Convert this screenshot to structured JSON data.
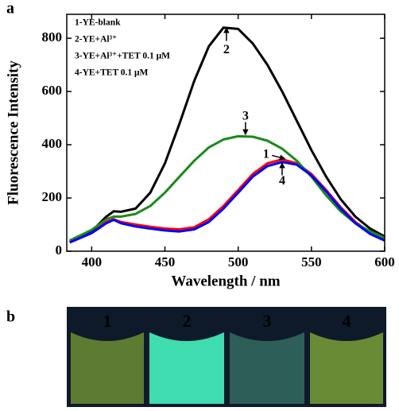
{
  "chart_data": {
    "type": "line",
    "panel_labels": [
      "a",
      "b"
    ],
    "x_label": "Wavelength / nm",
    "y_label": "Fluorescence Intensity",
    "x": [
      385,
      400,
      410,
      415,
      420,
      430,
      440,
      450,
      460,
      470,
      480,
      490,
      500,
      510,
      520,
      530,
      540,
      550,
      560,
      570,
      580,
      590,
      600
    ],
    "series": [
      {
        "name": "1-YE-blank",
        "color": "#ff0000",
        "values": [
          35,
          70,
          110,
          120,
          110,
          100,
          92,
          85,
          82,
          90,
          120,
          170,
          230,
          290,
          330,
          345,
          330,
          290,
          230,
          165,
          110,
          70,
          45
        ]
      },
      {
        "name": "2-YE+Al³⁺",
        "color": "#000000",
        "values": [
          40,
          75,
          130,
          150,
          148,
          160,
          220,
          330,
          480,
          640,
          770,
          840,
          835,
          780,
          700,
          600,
          490,
          380,
          280,
          195,
          130,
          85,
          55
        ]
      },
      {
        "name": "3-YE+Al³⁺+TET 0.1 μM",
        "color": "#1a8a1a",
        "values": [
          40,
          80,
          120,
          130,
          130,
          140,
          170,
          220,
          280,
          340,
          390,
          420,
          432,
          430,
          415,
          385,
          340,
          280,
          210,
          150,
          105,
          75,
          50
        ]
      },
      {
        "name": "4-YE+TET 0.1 μM",
        "color": "#0000ff",
        "values": [
          33,
          68,
          105,
          118,
          105,
          93,
          85,
          78,
          74,
          82,
          110,
          160,
          220,
          280,
          320,
          335,
          325,
          285,
          225,
          160,
          105,
          65,
          40
        ]
      }
    ],
    "annotations": [
      "2",
      "3",
      "1",
      "4"
    ],
    "xlim": [
      383,
      600
    ],
    "ylim": [
      0,
      890
    ],
    "xticks": [
      400,
      450,
      500,
      550,
      600
    ],
    "yticks": [
      0,
      200,
      400,
      600,
      800
    ],
    "photo_labels": [
      "1",
      "2",
      "3",
      "4"
    ]
  }
}
